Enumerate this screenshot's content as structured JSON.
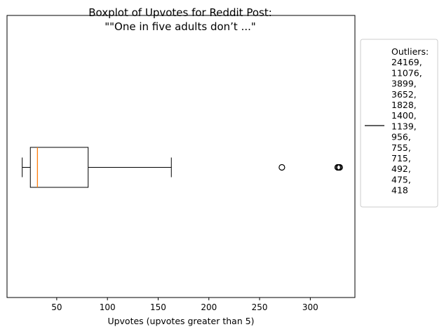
{
  "chart_data": {
    "type": "boxplot",
    "title_line1": "Boxplot of Upvotes for Reddit Post:",
    "title_line2": "\"\"One in five adults don’t ...\"",
    "xlabel": "Upvotes (upvotes greater than 5)",
    "ylabel": "",
    "orientation": "horizontal",
    "xlim": [
      1,
      344
    ],
    "x_ticks": [
      50,
      100,
      150,
      200,
      250,
      300
    ],
    "box": {
      "whisker_low": 16,
      "q1": 24,
      "median": 31,
      "q3": 81,
      "whisker_high": 163
    },
    "plotted_outliers": [
      272,
      327,
      328,
      329
    ],
    "legend": {
      "title": "Outliers:",
      "values": [
        "24169,",
        "11076,",
        "3899,",
        "3652,",
        "1828,",
        "1400,",
        "1139,",
        "956,",
        "755,",
        "715,",
        "492,",
        "475,",
        "418"
      ],
      "placement": "outside right"
    },
    "colors": {
      "box": "#000000",
      "median": "#ff7f0e",
      "outlier": "#000000"
    },
    "grid": false
  }
}
